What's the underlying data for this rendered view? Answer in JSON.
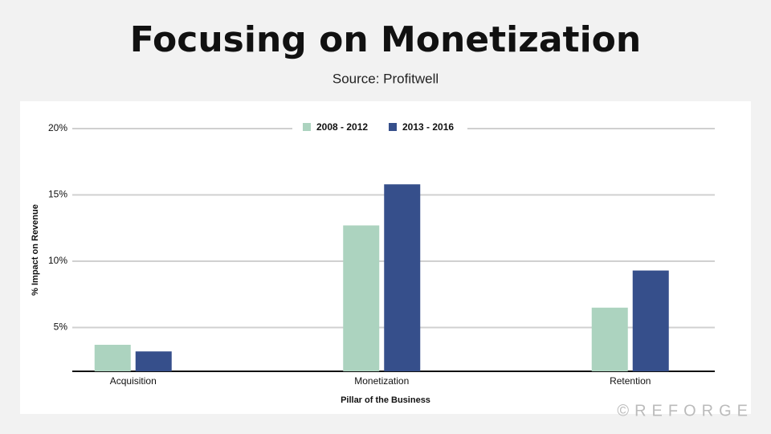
{
  "chart_data": {
    "type": "bar",
    "title": "Focusing on Monetization",
    "subtitle": "Source: Profitwell",
    "y_label": "% Impact on Revenue",
    "x_label": "Pillar of the Business",
    "categories": [
      "Acquisition",
      "Monetization",
      "Retention"
    ],
    "series": [
      {
        "name": "2008 - 2012",
        "color": "#acd3bf",
        "values": [
          3.7,
          12.7,
          6.5
        ]
      },
      {
        "name": "2013 - 2016",
        "color": "#364f8b",
        "values": [
          3.2,
          15.8,
          9.3
        ]
      }
    ],
    "ylim": [
      1.7,
      20
    ],
    "yticks": [
      {
        "value": 5,
        "label": "5%"
      },
      {
        "value": 10,
        "label": "10%"
      },
      {
        "value": 15,
        "label": "15%"
      },
      {
        "value": 20,
        "label": "20%"
      }
    ],
    "grid": true,
    "legend": "top"
  },
  "brand": "©REFORGE"
}
